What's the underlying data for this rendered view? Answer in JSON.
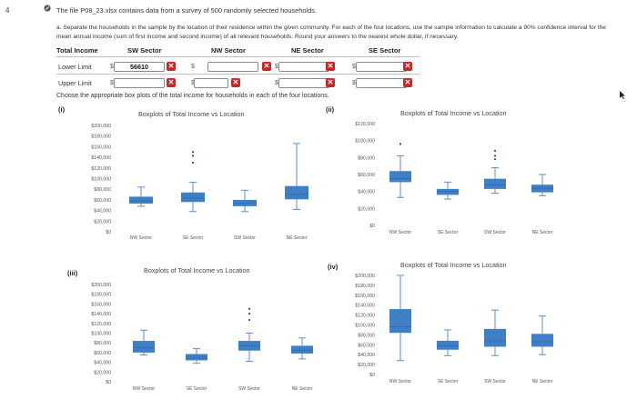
{
  "question": {
    "number": "4",
    "intro": "The file P08_23.xlsx contains data from a survey of 500 randomly selected households.",
    "part_a": "a. Separate the households in the sample by the location of their residence within the given community. For each of the four locations, use the sample information to calculate a 90% confidence interval for the mean annual income (sum of first income and second income) of all relevant households. Round your answers to the nearest whole dollar, if necessary."
  },
  "table": {
    "header_label": "Total Income",
    "columns": [
      "SW Sector",
      "NW Sector",
      "NE Sector",
      "SE Sector"
    ],
    "rows": [
      {
        "label": "Lower Limit",
        "values": [
          "56610",
          "",
          "",
          ""
        ]
      },
      {
        "label": "Upper Limit",
        "values": [
          "",
          "",
          "",
          ""
        ]
      }
    ],
    "currency": "$",
    "wrong_mark": "✕"
  },
  "prompt": "Choose the appropriate box plots of the total income for households in each of the four locations.",
  "colors": {
    "box": "#3f7fc6",
    "whisker": "#5a8fd0",
    "wrong": "#c62828"
  },
  "options": [
    {
      "label": "(i)"
    },
    {
      "label": "(ii)"
    },
    {
      "label": "(iii)"
    },
    {
      "label": "(iv)"
    }
  ],
  "chart_data": [
    {
      "type": "box",
      "title": "Boxplots of Total Income vs Location",
      "y_ticks": [
        "$200,000",
        "$180,000",
        "$160,000",
        "$140,000",
        "$120,000",
        "$100,000",
        "$80,000",
        "$60,000",
        "$40,000",
        "$20,000",
        "$0"
      ],
      "ylim": [
        0,
        200000
      ],
      "categories": [
        "NW Sector",
        "SE Sector",
        "SW Sector",
        "NE Sector"
      ],
      "boxes": [
        {
          "min": 48000,
          "q1": 53000,
          "median": 58000,
          "q3": 66000,
          "max": 84000,
          "outliers": []
        },
        {
          "min": 38000,
          "q1": 56000,
          "median": 63000,
          "q3": 74000,
          "max": 93000,
          "outliers": [
            130000,
            143000,
            150000
          ]
        },
        {
          "min": 38000,
          "q1": 48000,
          "median": 54000,
          "q3": 60000,
          "max": 78000,
          "outliers": []
        },
        {
          "min": 42000,
          "q1": 61000,
          "median": 70000,
          "q3": 86000,
          "max": 166000,
          "outliers": []
        }
      ]
    },
    {
      "type": "box",
      "title": "Boxplots of Total Income vs Location",
      "y_ticks": [
        "$120,000",
        "$100,000",
        "$80,000",
        "$60,000",
        "$40,000",
        "$20,000",
        "$0"
      ],
      "ylim": [
        0,
        120000
      ],
      "categories": [
        "NW Sector",
        "SE Sector",
        "SW Sector",
        "NE Sector"
      ],
      "boxes": [
        {
          "min": 33000,
          "q1": 51000,
          "median": 55000,
          "q3": 64000,
          "max": 82000,
          "outliers": [
            96000
          ]
        },
        {
          "min": 31000,
          "q1": 36000,
          "median": 40000,
          "q3": 43000,
          "max": 51000,
          "outliers": []
        },
        {
          "min": 38000,
          "q1": 43000,
          "median": 48000,
          "q3": 55000,
          "max": 68000,
          "outliers": [
            78000,
            82000,
            88000
          ]
        },
        {
          "min": 35000,
          "q1": 39000,
          "median": 44000,
          "q3": 48000,
          "max": 60000,
          "outliers": []
        }
      ]
    },
    {
      "type": "box",
      "title": "Boxplots of Total Income vs Location",
      "y_ticks": [
        "$200,000",
        "$180,000",
        "$160,000",
        "$140,000",
        "$120,000",
        "$100,000",
        "$80,000",
        "$60,000",
        "$40,000",
        "$20,000",
        "$0"
      ],
      "ylim": [
        0,
        200000
      ],
      "categories": [
        "NW Sector",
        "SE Sector",
        "SW Sector",
        "NE Sector"
      ],
      "boxes": [
        {
          "min": 55000,
          "q1": 60000,
          "median": 70000,
          "q3": 84000,
          "max": 106000,
          "outliers": []
        },
        {
          "min": 38000,
          "q1": 44000,
          "median": 50000,
          "q3": 57000,
          "max": 68000,
          "outliers": []
        },
        {
          "min": 42000,
          "q1": 64000,
          "median": 74000,
          "q3": 84000,
          "max": 100000,
          "outliers": [
            127000,
            140000,
            150000
          ]
        },
        {
          "min": 47000,
          "q1": 58000,
          "median": 65000,
          "q3": 74000,
          "max": 90000,
          "outliers": []
        }
      ]
    },
    {
      "type": "box",
      "title": "Boxplots of Total Income vs Location",
      "y_ticks": [
        "$200,000",
        "$180,000",
        "$160,000",
        "$140,000",
        "$120,000",
        "$100,000",
        "$80,000",
        "$60,000",
        "$40,000",
        "$20,000",
        "$0"
      ],
      "ylim": [
        0,
        200000
      ],
      "categories": [
        "NW Sector",
        "SE Sector",
        "SW Sector",
        "NE Sector"
      ],
      "boxes": [
        {
          "min": 28000,
          "q1": 84000,
          "median": 96000,
          "q3": 132000,
          "max": 200000,
          "outliers": []
        },
        {
          "min": 38000,
          "q1": 50000,
          "median": 58000,
          "q3": 68000,
          "max": 90000,
          "outliers": []
        },
        {
          "min": 38000,
          "q1": 56000,
          "median": 68000,
          "q3": 92000,
          "max": 130000,
          "outliers": []
        },
        {
          "min": 40000,
          "q1": 56000,
          "median": 66000,
          "q3": 82000,
          "max": 118000,
          "outliers": []
        }
      ]
    }
  ]
}
